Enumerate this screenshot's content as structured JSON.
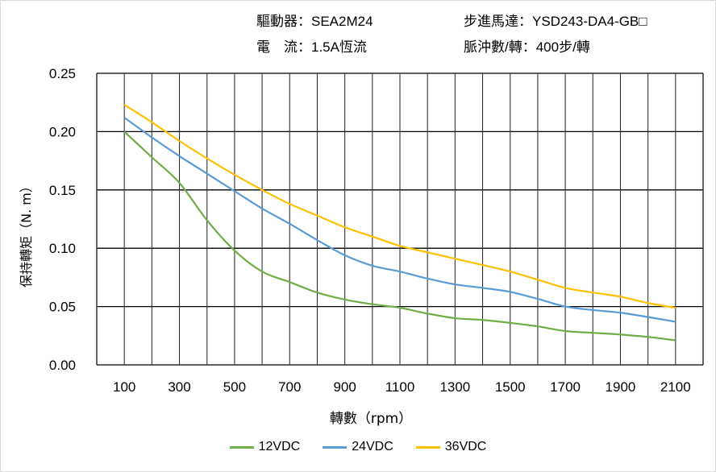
{
  "header": {
    "driver": "驅動器：SEA2M24",
    "motor": "步進馬達：YSD243-DA4-GB□",
    "current": "電　流：1.5A恆流",
    "pulses": "脈沖數/轉：400步/轉"
  },
  "chart_data": {
    "type": "line",
    "title": "",
    "xlabel": "轉數（rpm）",
    "ylabel": "保持轉矩（N. m）",
    "ylim": [
      0,
      0.25
    ],
    "yticks": [
      "0.00",
      "0.05",
      "0.10",
      "0.15",
      "0.20",
      "0.25"
    ],
    "x": [
      100,
      200,
      300,
      400,
      500,
      600,
      700,
      800,
      900,
      1000,
      1100,
      1200,
      1300,
      1400,
      1500,
      1600,
      1700,
      1800,
      1900,
      2000,
      2100
    ],
    "xtick_labels": [
      "100",
      "300",
      "500",
      "700",
      "900",
      "1100",
      "1300",
      "1500",
      "1700",
      "1900",
      "2100"
    ],
    "grid": true,
    "legend": "bottom",
    "series": [
      {
        "name": "12VDC",
        "color": "#70AD47",
        "values": [
          0.2,
          0.178,
          0.156,
          0.124,
          0.098,
          0.08,
          0.071,
          0.062,
          0.056,
          0.052,
          0.049,
          0.044,
          0.04,
          0.0385,
          0.036,
          0.033,
          0.029,
          0.0275,
          0.026,
          0.024,
          0.021
        ]
      },
      {
        "name": "24VDC",
        "color": "#5B9BD5",
        "values": [
          0.212,
          0.195,
          0.179,
          0.164,
          0.149,
          0.134,
          0.121,
          0.107,
          0.094,
          0.085,
          0.08,
          0.074,
          0.069,
          0.066,
          0.0626,
          0.0566,
          0.05,
          0.047,
          0.0447,
          0.041,
          0.037
        ]
      },
      {
        "name": "36VDC",
        "color": "#FFC000",
        "values": [
          0.223,
          0.208,
          0.192,
          0.177,
          0.163,
          0.15,
          0.138,
          0.128,
          0.118,
          0.11,
          0.102,
          0.0965,
          0.091,
          0.0856,
          0.08,
          0.073,
          0.066,
          0.062,
          0.0585,
          0.053,
          0.049
        ]
      }
    ]
  }
}
